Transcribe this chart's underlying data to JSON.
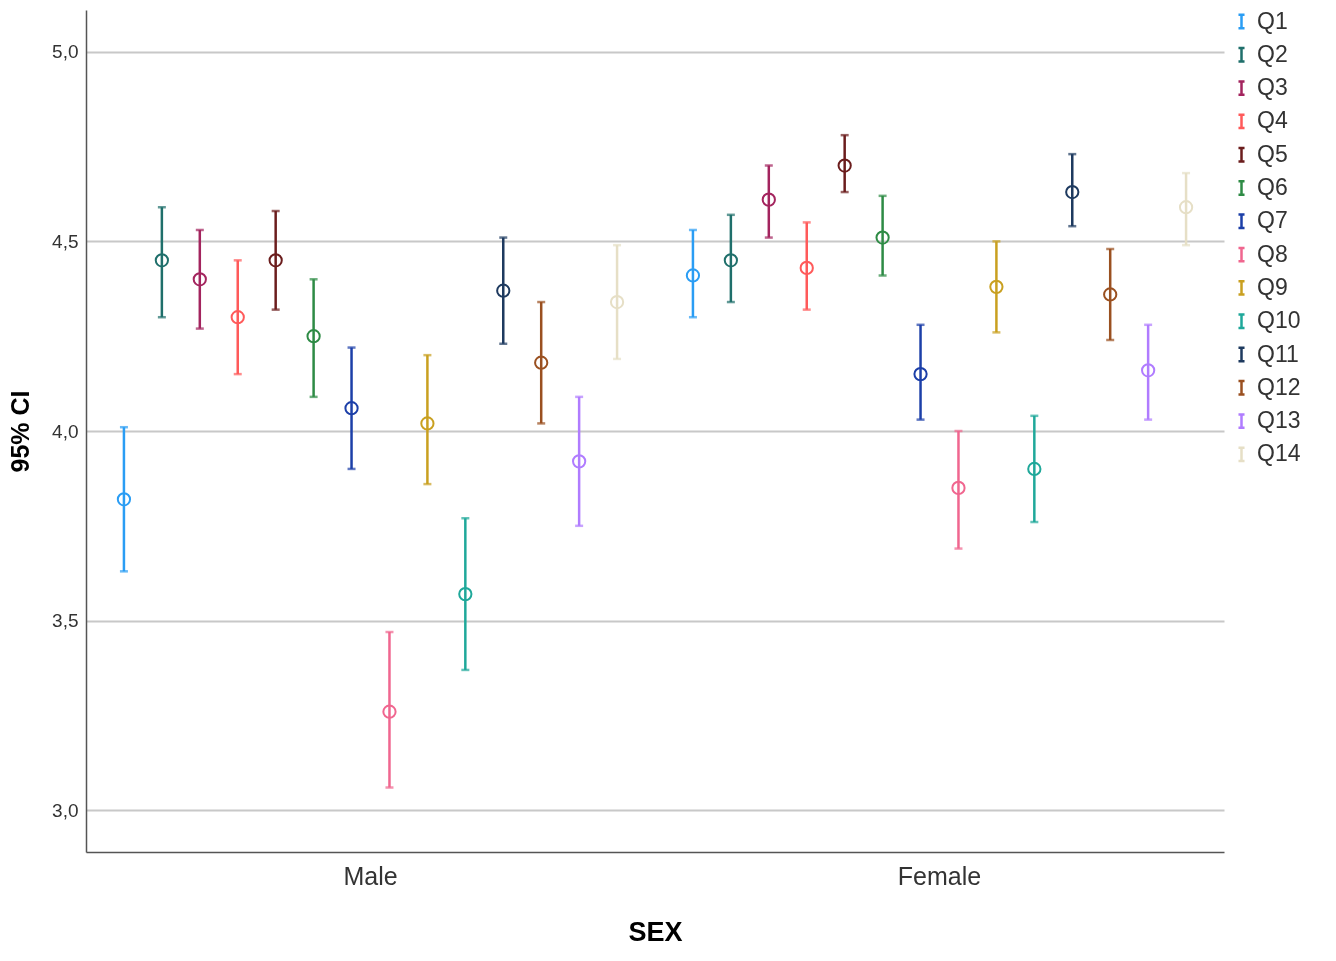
{
  "chart_data": {
    "type": "scatter",
    "xlabel": "SEX",
    "ylabel": "95% CI",
    "categories": [
      "Male",
      "Female"
    ],
    "ylim": [
      2.89,
      5.11
    ],
    "yticks": [
      {
        "value": 3,
        "label": "3,0"
      },
      {
        "value": 3.5,
        "label": "3,5"
      },
      {
        "value": 4,
        "label": "4,0"
      },
      {
        "value": 4.5,
        "label": "4,5"
      },
      {
        "value": 5,
        "label": "5,0"
      }
    ],
    "grid": "y",
    "legend": "top right",
    "marker": "circle",
    "series": [
      {
        "name": "Q1",
        "color": "#2a9df4",
        "values": [
          3.82,
          4.41
        ],
        "errors": [
          [
            3.63,
            4.01
          ],
          [
            4.3,
            4.53
          ]
        ]
      },
      {
        "name": "Q2",
        "color": "#1f6f6b",
        "values": [
          4.45,
          4.45
        ],
        "errors": [
          [
            4.3,
            4.59
          ],
          [
            4.34,
            4.57
          ]
        ]
      },
      {
        "name": "Q3",
        "color": "#a3245e",
        "values": [
          4.4,
          4.61
        ],
        "errors": [
          [
            4.27,
            4.53
          ],
          [
            4.51,
            4.7
          ]
        ]
      },
      {
        "name": "Q4",
        "color": "#ff5a5a",
        "values": [
          4.3,
          4.43
        ],
        "errors": [
          [
            4.15,
            4.45
          ],
          [
            4.32,
            4.55
          ]
        ]
      },
      {
        "name": "Q5",
        "color": "#6b1d1d",
        "values": [
          4.45,
          4.7
        ],
        "errors": [
          [
            4.32,
            4.58
          ],
          [
            4.63,
            4.78
          ]
        ]
      },
      {
        "name": "Q6",
        "color": "#2e8b45",
        "values": [
          4.25,
          4.51
        ],
        "errors": [
          [
            4.09,
            4.4
          ],
          [
            4.41,
            4.62
          ]
        ]
      },
      {
        "name": "Q7",
        "color": "#1c3fa8",
        "values": [
          4.06,
          4.15
        ],
        "errors": [
          [
            3.9,
            4.22
          ],
          [
            4.03,
            4.28
          ]
        ]
      },
      {
        "name": "Q8",
        "color": "#f0668f",
        "values": [
          3.26,
          3.85
        ],
        "errors": [
          [
            3.06,
            3.47
          ],
          [
            3.69,
            4.0
          ]
        ]
      },
      {
        "name": "Q9",
        "color": "#c9a020",
        "values": [
          4.02,
          4.38
        ],
        "errors": [
          [
            3.86,
            4.2
          ],
          [
            4.26,
            4.5
          ]
        ]
      },
      {
        "name": "Q10",
        "color": "#1fa89a",
        "values": [
          3.57,
          3.9
        ],
        "errors": [
          [
            3.37,
            3.77
          ],
          [
            3.76,
            4.04
          ]
        ]
      },
      {
        "name": "Q11",
        "color": "#1e3a5f",
        "values": [
          4.37,
          4.63
        ],
        "errors": [
          [
            4.23,
            4.51
          ],
          [
            4.54,
            4.73
          ]
        ]
      },
      {
        "name": "Q12",
        "color": "#9a5020",
        "values": [
          4.18,
          4.36
        ],
        "errors": [
          [
            4.02,
            4.34
          ],
          [
            4.24,
            4.48
          ]
        ]
      },
      {
        "name": "Q13",
        "color": "#b07cff",
        "values": [
          3.92,
          4.16
        ],
        "errors": [
          [
            3.75,
            4.09
          ],
          [
            4.03,
            4.28
          ]
        ]
      },
      {
        "name": "Q14",
        "color": "#e6dfc6",
        "values": [
          4.34,
          4.59
        ],
        "errors": [
          [
            4.19,
            4.49
          ],
          [
            4.49,
            4.68
          ]
        ]
      }
    ]
  }
}
